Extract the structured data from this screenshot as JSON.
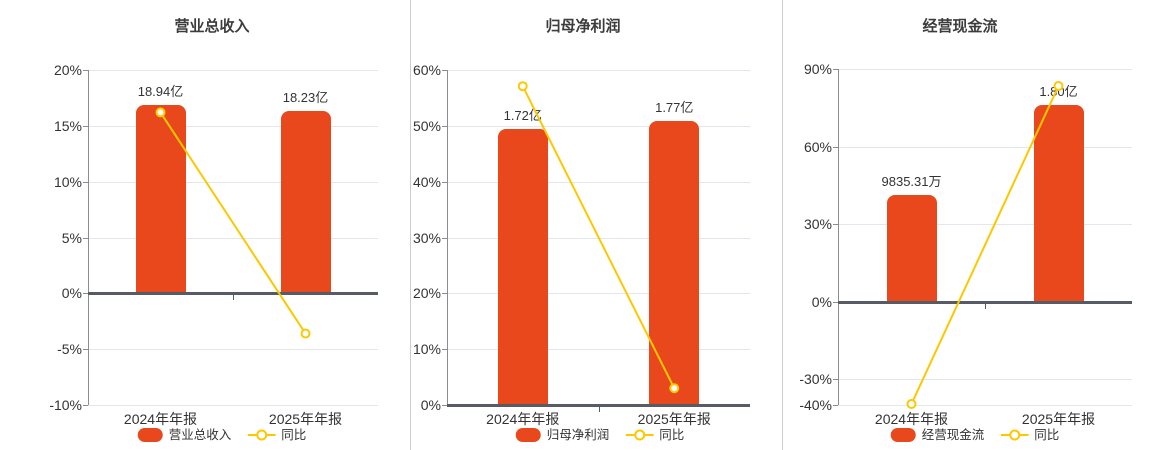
{
  "colors": {
    "bar": "#e8481c",
    "line": "#fcc800",
    "marker_fill": "#ffffff",
    "grid": "#e2e6ef",
    "axis": "#898c92",
    "zero_axis": "#565b64",
    "text": "#333333",
    "title": "#3c3c3c",
    "divider": "#cccccc",
    "background": "#ffffff"
  },
  "chart_data": [
    {
      "type": "bar",
      "title": "营业总收入",
      "categories": [
        "2024年年报",
        "2025年年报"
      ],
      "bar_series": {
        "name": "营业总收入",
        "unit": "亿",
        "values": [
          18.94,
          18.23
        ],
        "labels": [
          "18.94亿",
          "18.23亿"
        ]
      },
      "line_series": {
        "name": "同比",
        "values_pct": [
          16.2,
          -3.6
        ]
      },
      "ylim": [
        -10,
        20
      ],
      "ytick_values": [
        20,
        15,
        10,
        5,
        0,
        -5,
        -10
      ],
      "ytick_labels": [
        "20%",
        "15%",
        "10%",
        "5%",
        "0%",
        "-5%",
        "-10%"
      ],
      "bar_tops_axis_pct": [
        16.9,
        16.3
      ],
      "legend_position": "bottom",
      "grid": true
    },
    {
      "type": "bar",
      "title": "归母净利润",
      "categories": [
        "2024年年报",
        "2025年年报"
      ],
      "bar_series": {
        "name": "归母净利润",
        "unit": "亿",
        "values": [
          1.72,
          1.77
        ],
        "labels": [
          "1.72亿",
          "1.77亿"
        ]
      },
      "line_series": {
        "name": "同比",
        "values_pct": [
          57.1,
          3.0
        ]
      },
      "ylim": [
        0,
        60
      ],
      "ytick_values": [
        60,
        50,
        40,
        30,
        20,
        10,
        0
      ],
      "ytick_labels": [
        "60%",
        "50%",
        "40%",
        "30%",
        "20%",
        "10%",
        "0%"
      ],
      "bar_tops_axis_pct": [
        49.4,
        50.9
      ],
      "legend_position": "bottom",
      "grid": true
    },
    {
      "type": "bar",
      "title": "经营现金流",
      "categories": [
        "2024年年报",
        "2025年年报"
      ],
      "bar_series": {
        "name": "经营现金流",
        "unit": "",
        "values": [
          9835.31,
          18000
        ],
        "labels": [
          "9835.31万",
          "1.80亿"
        ]
      },
      "line_series": {
        "name": "同比",
        "values_pct": [
          -39.6,
          83.4
        ]
      },
      "ylim": [
        -40,
        90
      ],
      "ytick_values": [
        90,
        60,
        30,
        0,
        -30,
        -40
      ],
      "ytick_labels": [
        "90%",
        "60%",
        "30%",
        "0%",
        "-30%",
        "-40%"
      ],
      "bar_tops_axis_pct": [
        41.2,
        76.0
      ],
      "legend_position": "bottom",
      "grid": true
    }
  ]
}
